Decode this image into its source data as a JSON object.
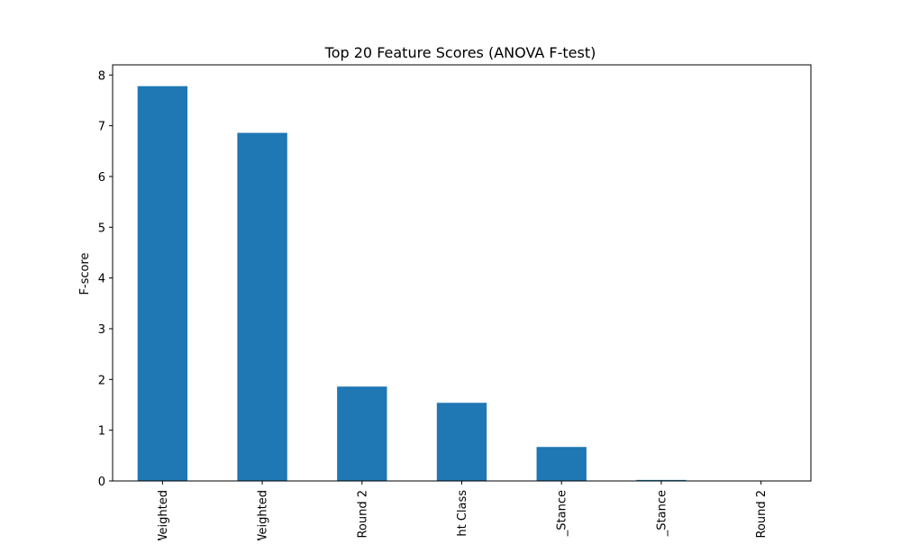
{
  "chart_data": {
    "type": "bar",
    "title": "Top 20 Feature Scores (ANOVA F-test)",
    "xlabel": "",
    "ylabel": "F-score",
    "categories": [
      "Weighted",
      "Weighted",
      "Round 2",
      "ht Class",
      "_Stance",
      "_Stance",
      "Round 2"
    ],
    "values": [
      7.78,
      6.86,
      1.86,
      1.54,
      0.67,
      0.02,
      0.0
    ],
    "ylim": [
      0,
      8.2
    ],
    "yticks": [
      0,
      1,
      2,
      3,
      4,
      5,
      6,
      7,
      8
    ],
    "grid": false,
    "legend": "none",
    "bar_color": "#1f77b4"
  }
}
